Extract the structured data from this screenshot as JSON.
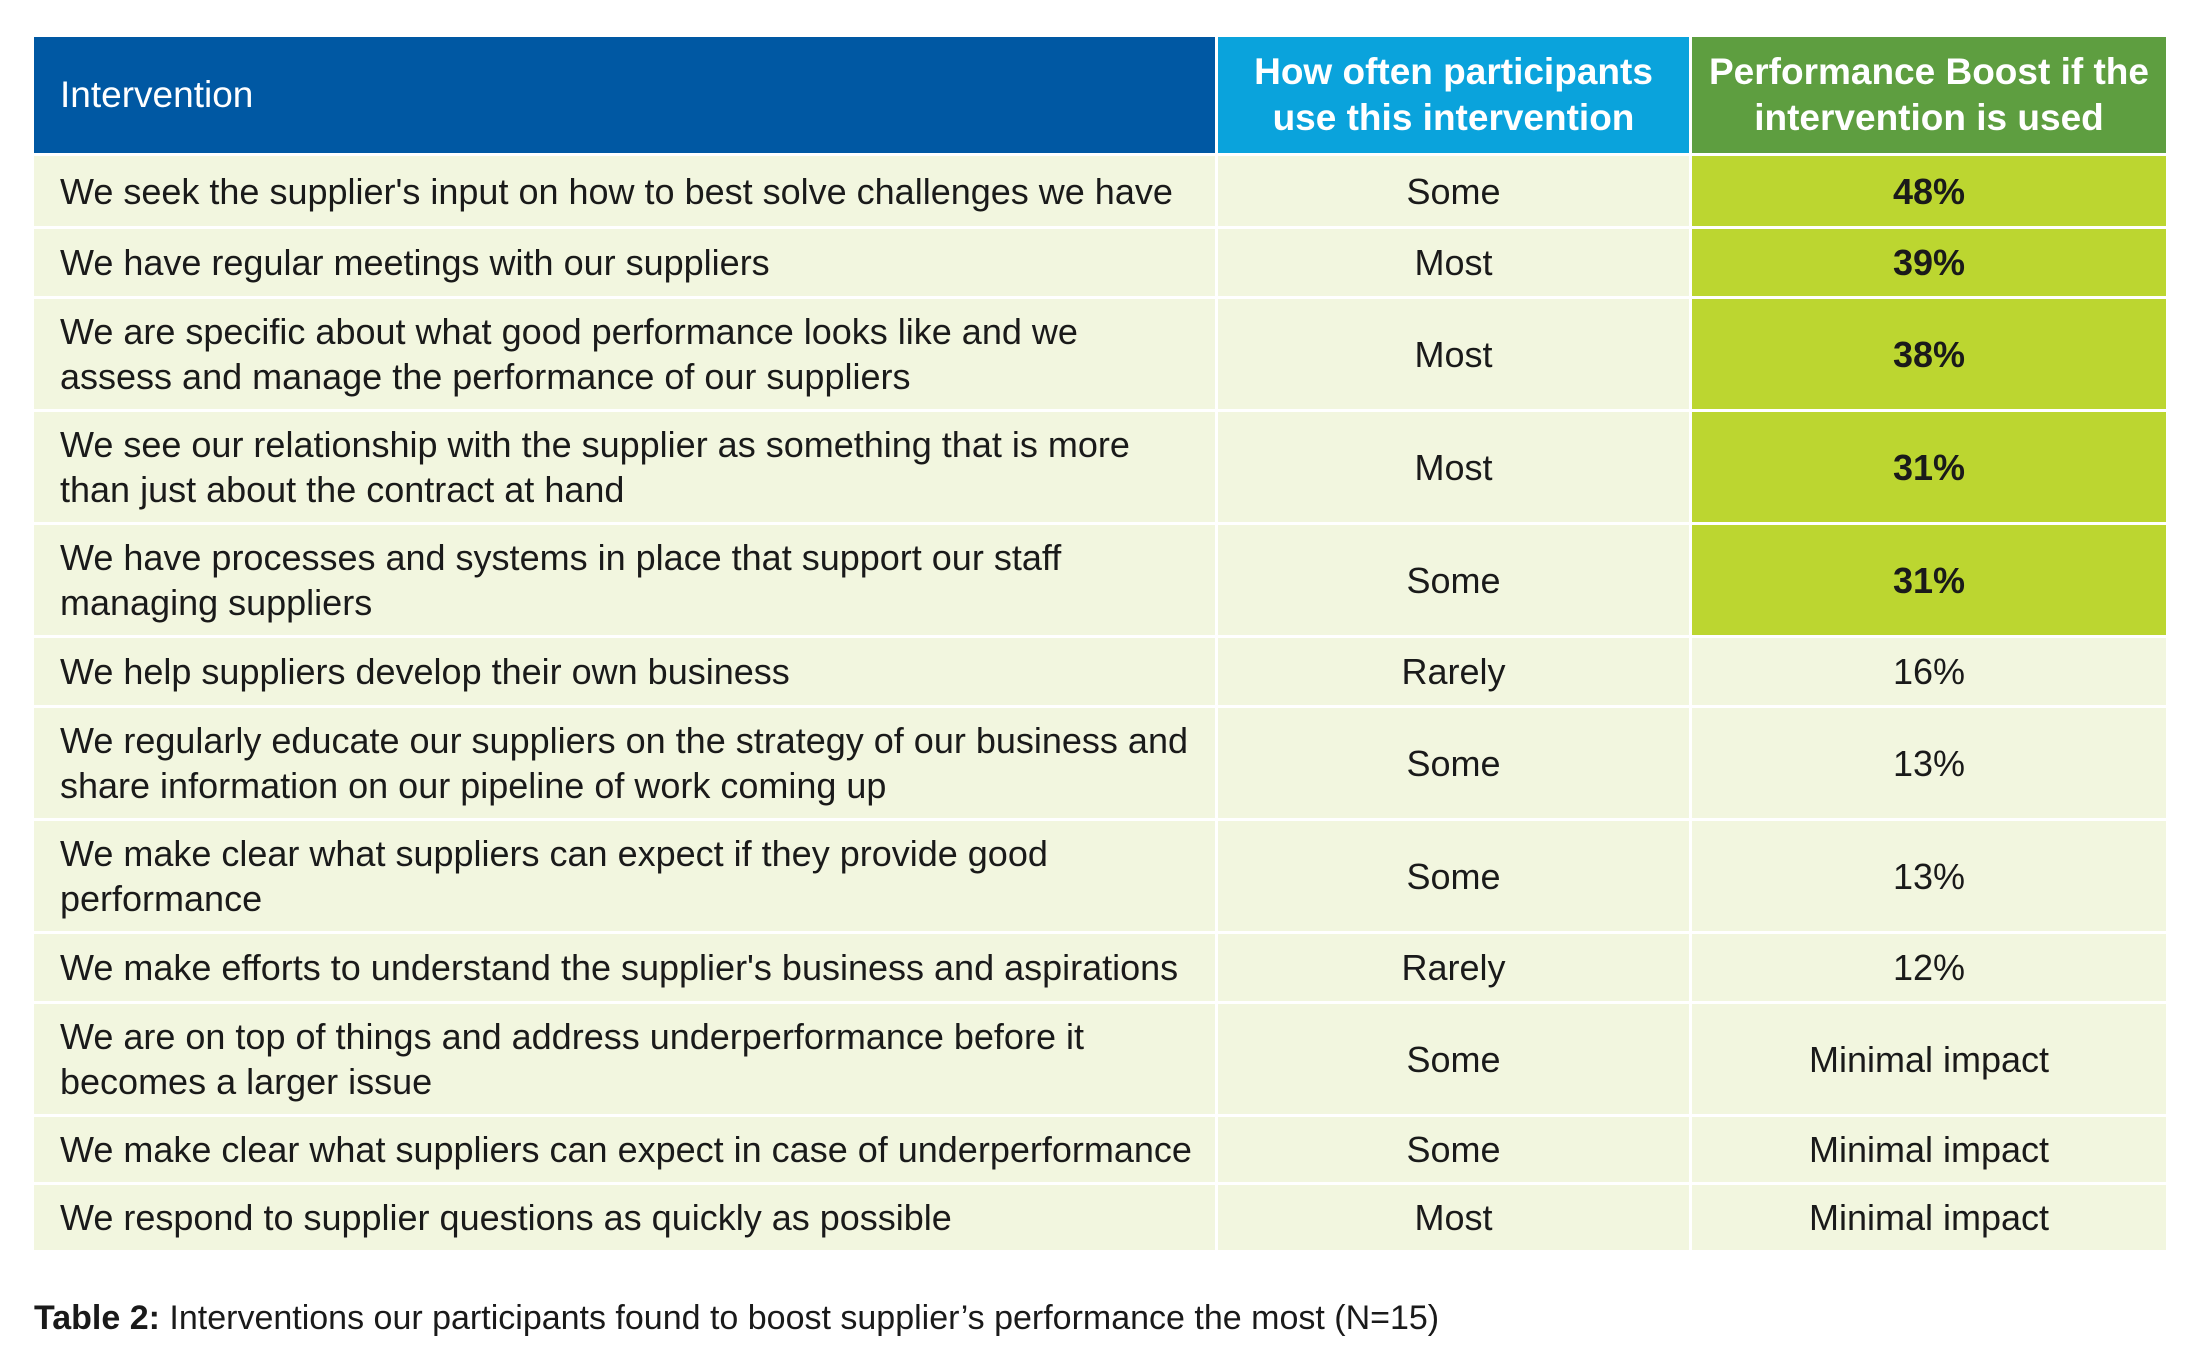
{
  "table": {
    "headers": {
      "intervention": "Intervention",
      "frequency": "How often participants use this intervention",
      "boost": "Performance Boost if the intervention is used"
    },
    "rows": [
      {
        "intervention": "We seek the supplier's input on how to best solve challenges we have",
        "frequency": "Some",
        "boost": "48%",
        "highlight": true
      },
      {
        "intervention": "We have regular meetings with our suppliers",
        "frequency": "Most",
        "boost": "39%",
        "highlight": true
      },
      {
        "intervention": "We are specific about what good performance looks like and we assess and manage the performance of our suppliers",
        "frequency": "Most",
        "boost": "38%",
        "highlight": true
      },
      {
        "intervention": "We see our relationship with the supplier as something that is more than just about the contract at hand",
        "frequency": "Most",
        "boost": "31%",
        "highlight": true
      },
      {
        "intervention": "We have processes and systems in place that support our staff managing suppliers",
        "frequency": "Some",
        "boost": "31%",
        "highlight": true
      },
      {
        "intervention": "We help suppliers develop their own business",
        "frequency": "Rarely",
        "boost": "16%",
        "highlight": false
      },
      {
        "intervention": "We regularly educate our suppliers on the strategy of our business and share information on our pipeline of work coming up",
        "frequency": "Some",
        "boost": "13%",
        "highlight": false
      },
      {
        "intervention": "We make clear what suppliers can expect if they provide good performance",
        "frequency": "Some",
        "boost": "13%",
        "highlight": false
      },
      {
        "intervention": "We make efforts to understand the supplier's business and aspirations",
        "frequency": "Rarely",
        "boost": "12%",
        "highlight": false
      },
      {
        "intervention": "We are on top of things and address underperformance before it becomes a larger issue",
        "frequency": "Some",
        "boost": "Minimal impact",
        "highlight": false
      },
      {
        "intervention": "We make clear what suppliers can expect in case of underperformance",
        "frequency": "Some",
        "boost": "Minimal impact",
        "highlight": false
      },
      {
        "intervention": "We respond to supplier questions as quickly as possible",
        "frequency": "Most",
        "boost": "Minimal impact",
        "highlight": false
      }
    ]
  },
  "caption": {
    "label": "Table 2:",
    "text": " Interventions our participants found to boost supplier’s performance the most (N=15)"
  },
  "colors": {
    "header_intervention": "#0058a3",
    "header_frequency": "#0aa3dc",
    "header_boost": "#5e9e40",
    "highlight": "#bcd630",
    "row_background": "#f2f6df"
  }
}
